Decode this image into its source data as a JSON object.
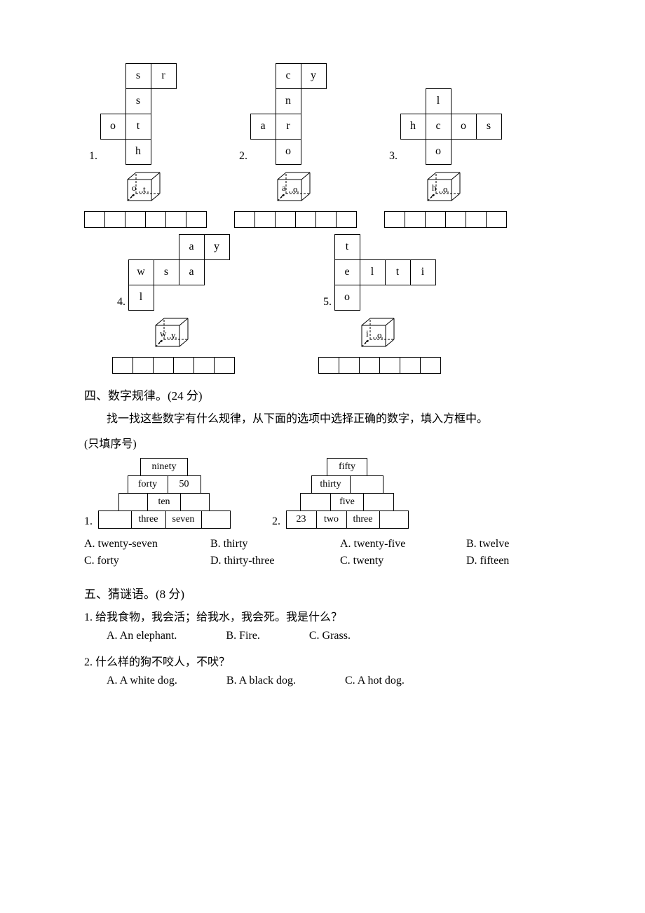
{
  "puzzles_top": [
    {
      "num": "1.",
      "grid": [
        [
          "",
          "s",
          "r",
          ""
        ],
        [
          "",
          "s",
          "",
          ""
        ],
        [
          "o",
          "t",
          "",
          ""
        ],
        [
          "",
          "h",
          "",
          ""
        ]
      ],
      "cube_l": "o",
      "cube_r": "t",
      "ans_cells": 6
    },
    {
      "num": "2.",
      "grid": [
        [
          "",
          "c",
          "y",
          ""
        ],
        [
          "",
          "n",
          "",
          ""
        ],
        [
          "a",
          "r",
          "",
          ""
        ],
        [
          "",
          "o",
          "",
          ""
        ]
      ],
      "cube_l": "a",
      "cube_r": "o",
      "ans_cells": 6
    },
    {
      "num": "3.",
      "grid": [
        [
          "",
          "",
          "",
          ""
        ],
        [
          "",
          "l",
          "",
          ""
        ],
        [
          "h",
          "c",
          "o",
          "s"
        ],
        [
          "",
          "o",
          "",
          ""
        ]
      ],
      "cube_l": "h",
      "cube_r": "o",
      "ans_cells": 6,
      "empty_top": true
    }
  ],
  "puzzles_bottom": [
    {
      "num": "4.",
      "grid": [
        [
          "",
          "",
          "a",
          "y"
        ],
        [
          "w",
          "s",
          "a",
          ""
        ],
        [
          "l",
          "",
          "",
          ""
        ]
      ],
      "cube_l": "w",
      "cube_r": "y",
      "ans_cells": 6,
      "single_left": true
    },
    {
      "num": "5.",
      "grid": [
        [
          "t",
          "",
          "",
          ""
        ],
        [
          "e",
          "l",
          "t",
          "i"
        ],
        [
          "o",
          "",
          "",
          ""
        ]
      ],
      "cube_l": "i",
      "cube_r": "o",
      "ans_cells": 6
    }
  ],
  "section4": {
    "title": "四、数字规律。(24 分)",
    "instruction": "找一找这些数字有什么规律，从下面的选项中选择正确的数字，填入方框中。",
    "sub": "(只填序号)"
  },
  "pyramid1": {
    "num": "1.",
    "rows": [
      [
        "ninety"
      ],
      [
        "forty",
        "50"
      ],
      [
        "",
        "ten",
        ""
      ],
      [
        "",
        "three",
        "seven",
        ""
      ]
    ],
    "widths": [
      [
        68
      ],
      [
        58,
        48
      ],
      [
        42,
        48,
        42
      ],
      [
        48,
        50,
        52,
        42
      ]
    ],
    "opts": [
      [
        "A. twenty-seven",
        "B. thirty"
      ],
      [
        "C. forty",
        "D. thirty-three"
      ]
    ]
  },
  "pyramid2": {
    "num": "2.",
    "rows": [
      [
        "fifty"
      ],
      [
        "thirty",
        ""
      ],
      [
        "",
        "five",
        ""
      ],
      [
        "23",
        "two",
        "three",
        ""
      ]
    ],
    "widths": [
      [
        58
      ],
      [
        56,
        48
      ],
      [
        44,
        48,
        44
      ],
      [
        44,
        44,
        48,
        42
      ]
    ],
    "opts": [
      [
        "A. twenty-five",
        "B. twelve"
      ],
      [
        "C. twenty",
        "D. fifteen"
      ]
    ]
  },
  "section5": {
    "title": "五、猜谜语。(8 分)",
    "q1": {
      "text": "1. 给我食物，我会活；给我水，我会死。我是什么？",
      "opts": [
        "A. An elephant.",
        "B. Fire.",
        "C. Grass."
      ]
    },
    "q2": {
      "text": "2. 什么样的狗不咬人，不吠？",
      "opts": [
        "A. A white dog.",
        "B. A black dog.",
        "C. A hot dog."
      ]
    }
  }
}
